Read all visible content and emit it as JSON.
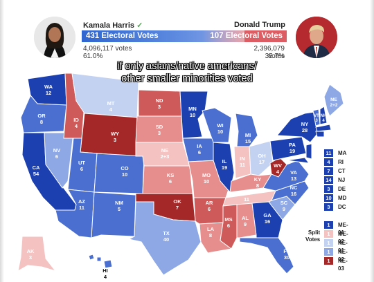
{
  "candidates": {
    "left": {
      "name": "Kamala Harris",
      "check": "✓",
      "ev_label": "431 Electoral Votes",
      "votes": "4,096,117 votes",
      "pct": "61.0%",
      "color": "#3a73d6"
    },
    "right": {
      "name": "Donald Trump",
      "ev_label": "107 Electoral Votes",
      "votes": "2,396,079 votes",
      "pct": "35.7%",
      "color": "#d95c62"
    }
  },
  "caption": {
    "line1": "if only asians/native americans/",
    "line2": "other smaller minorities voted"
  },
  "colors": {
    "safe_d": "#1c40b0",
    "likely_d": "#4a6fd0",
    "lean_d": "#8ea8e6",
    "tilt_d": "#c4d2f2",
    "tilt_r": "#f5c2c2",
    "lean_r": "#e68e8e",
    "likely_r": "#cf5a5a",
    "safe_r": "#a52828"
  },
  "states": {
    "WA": {
      "abbr": "WA",
      "ev": "12"
    },
    "OR": {
      "abbr": "OR",
      "ev": "8"
    },
    "CA": {
      "abbr": "CA",
      "ev": "54"
    },
    "ID": {
      "abbr": "ID",
      "ev": "4"
    },
    "NV": {
      "abbr": "NV",
      "ev": "6"
    },
    "MT": {
      "abbr": "MT",
      "ev": "4"
    },
    "WY": {
      "abbr": "WY",
      "ev": "3"
    },
    "UT": {
      "abbr": "UT",
      "ev": "6"
    },
    "AZ": {
      "abbr": "AZ",
      "ev": "11"
    },
    "CO": {
      "abbr": "CO",
      "ev": "10"
    },
    "NM": {
      "abbr": "NM",
      "ev": "5"
    },
    "ND": {
      "abbr": "ND",
      "ev": "3"
    },
    "SD": {
      "abbr": "SD",
      "ev": "3"
    },
    "NE": {
      "abbr": "NE",
      "ev": "2+3"
    },
    "KS": {
      "abbr": "KS",
      "ev": "6"
    },
    "OK": {
      "abbr": "OK",
      "ev": "7"
    },
    "TX": {
      "abbr": "TX",
      "ev": "40"
    },
    "MN": {
      "abbr": "MN",
      "ev": "10"
    },
    "IA": {
      "abbr": "IA",
      "ev": "6"
    },
    "MO": {
      "abbr": "MO",
      "ev": "10"
    },
    "AR": {
      "abbr": "AR",
      "ev": "6"
    },
    "LA": {
      "abbr": "LA",
      "ev": "8"
    },
    "WI": {
      "abbr": "WI",
      "ev": "10"
    },
    "IL": {
      "abbr": "IL",
      "ev": "19"
    },
    "MI": {
      "abbr": "MI",
      "ev": "15"
    },
    "IN": {
      "abbr": "IN",
      "ev": "11"
    },
    "OH": {
      "abbr": "OH",
      "ev": "17"
    },
    "KY": {
      "abbr": "KY",
      "ev": "8"
    },
    "TN": {
      "abbr": "TN",
      "ev": "11"
    },
    "MS": {
      "abbr": "MS",
      "ev": "6"
    },
    "AL": {
      "abbr": "AL",
      "ev": "9"
    },
    "GA": {
      "abbr": "GA",
      "ev": "16"
    },
    "FL": {
      "abbr": "FL",
      "ev": "30"
    },
    "SC": {
      "abbr": "SC",
      "ev": "9"
    },
    "NC": {
      "abbr": "NC",
      "ev": "16"
    },
    "VA": {
      "abbr": "VA",
      "ev": "13"
    },
    "WV": {
      "abbr": "WV",
      "ev": "4"
    },
    "PA": {
      "abbr": "PA",
      "ev": "19"
    },
    "NY": {
      "abbr": "NY",
      "ev": "28"
    },
    "VT": {
      "abbr": "VT",
      "ev": "3"
    },
    "NH": {
      "abbr": "NH",
      "ev": "4"
    },
    "ME": {
      "abbr": "ME",
      "ev": "2+2"
    },
    "AK": {
      "abbr": "AK",
      "ev": "3"
    },
    "HI": {
      "abbr": "HI",
      "ev": "4"
    }
  },
  "small_states": [
    {
      "ev": "11",
      "name": "MA",
      "color": "#1c40b0"
    },
    {
      "ev": "4",
      "name": "RI",
      "color": "#1c40b0"
    },
    {
      "ev": "7",
      "name": "CT",
      "color": "#1c40b0"
    },
    {
      "ev": "14",
      "name": "NJ",
      "color": "#1c40b0"
    },
    {
      "ev": "3",
      "name": "DE",
      "color": "#1c40b0"
    },
    {
      "ev": "10",
      "name": "MD",
      "color": "#1c40b0"
    },
    {
      "ev": "3",
      "name": "DC",
      "color": "#1c40b0"
    }
  ],
  "split_votes": {
    "label_line1": "Split",
    "label_line2": "Votes",
    "items": [
      {
        "ev": "1",
        "name": "ME-01",
        "color": "#1c40b0"
      },
      {
        "ev": "1",
        "name": "ME-02",
        "color": "#f5c2c2"
      },
      {
        "ev": "1",
        "name": "NE-01",
        "color": "#c4d2f2"
      },
      {
        "ev": "1",
        "name": "NE-02",
        "color": "#8ea8e6"
      },
      {
        "ev": "1",
        "name": "NE-03",
        "color": "#a52828"
      }
    ]
  }
}
